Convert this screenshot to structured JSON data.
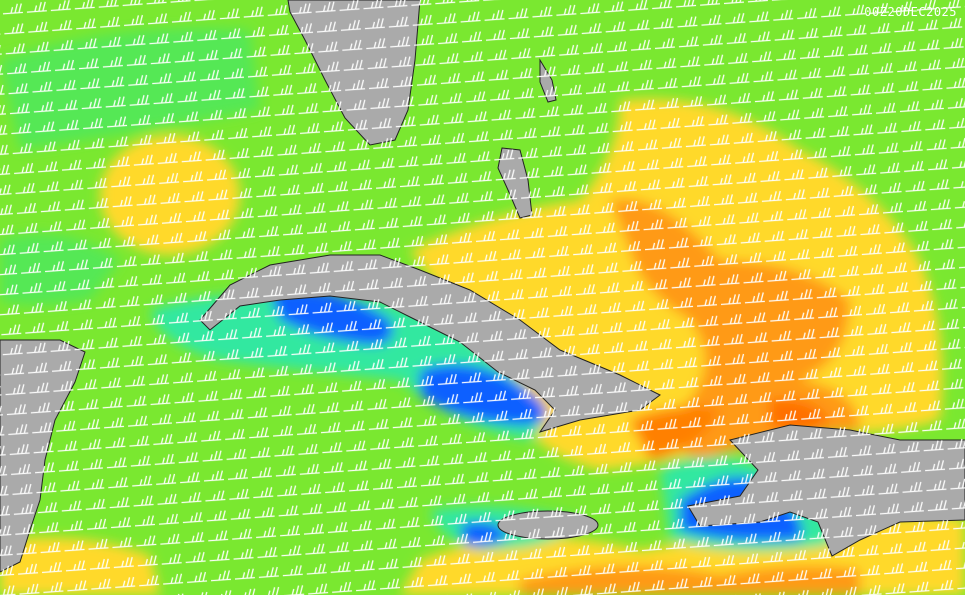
{
  "timestamp": "00Z20DEC2025"
}
